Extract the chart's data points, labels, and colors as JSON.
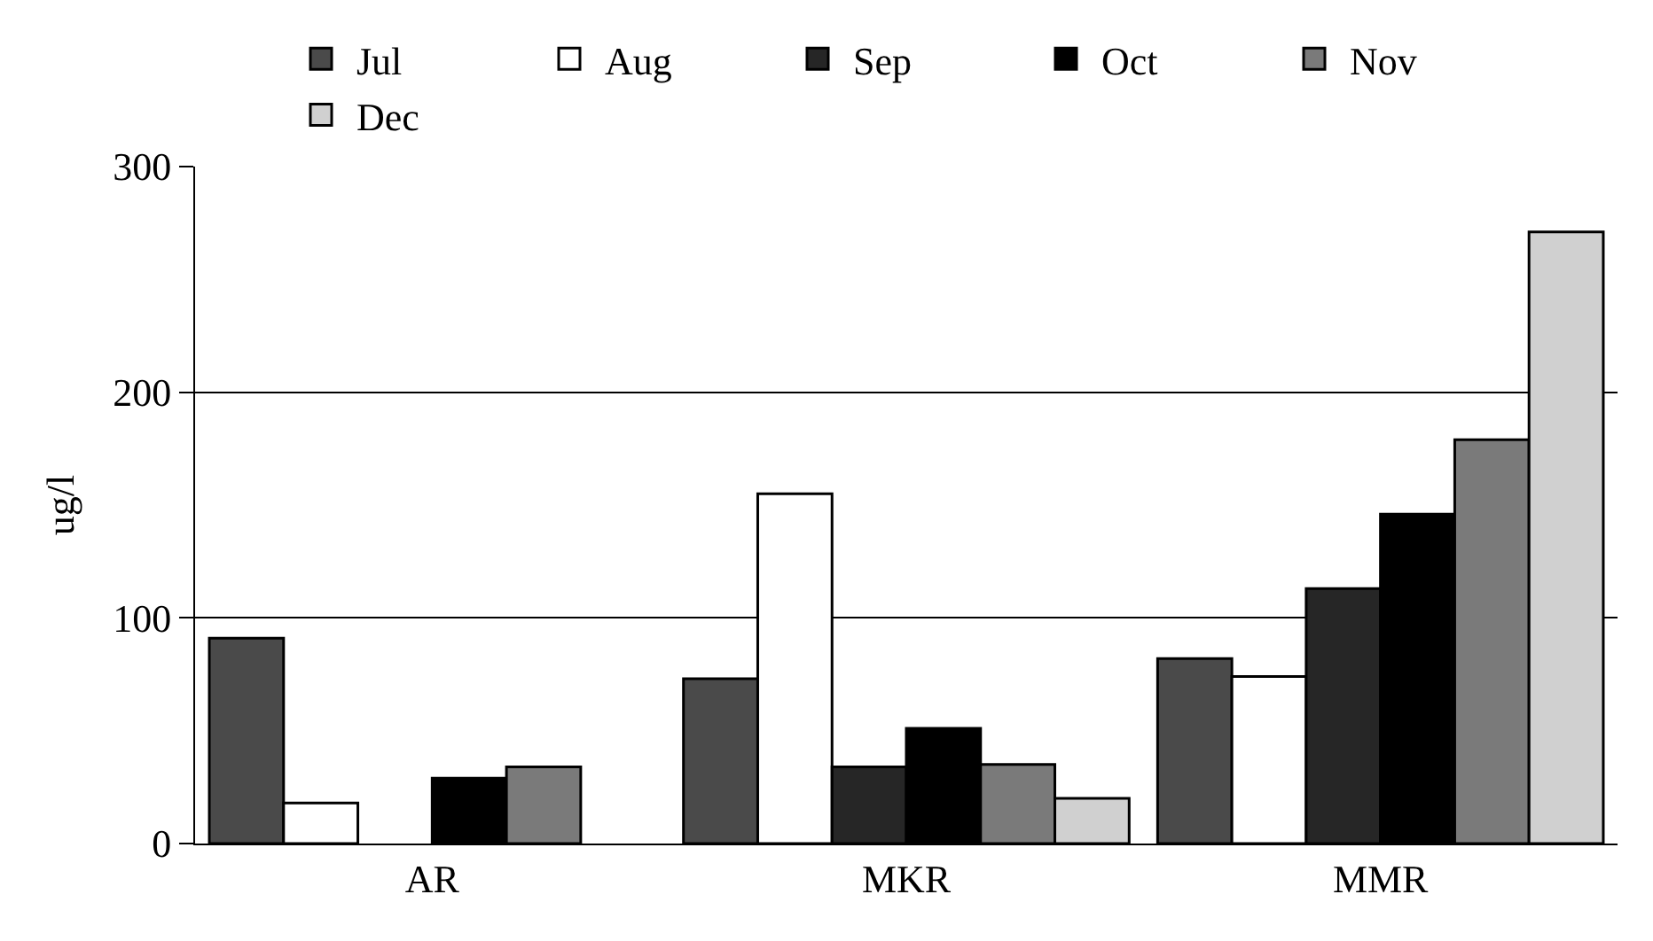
{
  "chart_data": {
    "type": "bar",
    "ylabel": "ug/l",
    "categories": [
      "AR",
      "MKR",
      "MMR"
    ],
    "series": [
      {
        "name": "Jul",
        "color": "#4a4a4a",
        "values": [
          91,
          73,
          82
        ]
      },
      {
        "name": "Aug",
        "color": "#ffffff",
        "values": [
          18,
          155,
          74
        ]
      },
      {
        "name": "Sep",
        "color": "#262626",
        "values": [
          null,
          34,
          113
        ]
      },
      {
        "name": "Oct",
        "color": "#000000",
        "values": [
          29,
          51,
          146
        ]
      },
      {
        "name": "Nov",
        "color": "#7a7a7a",
        "values": [
          34,
          35,
          179
        ]
      },
      {
        "name": "Dec",
        "color": "#d0d0d0",
        "values": [
          null,
          20,
          271
        ]
      }
    ],
    "ylim": [
      0,
      300
    ],
    "yticks": [
      0,
      100,
      200,
      300
    ],
    "grid": "y",
    "legend": "top"
  }
}
